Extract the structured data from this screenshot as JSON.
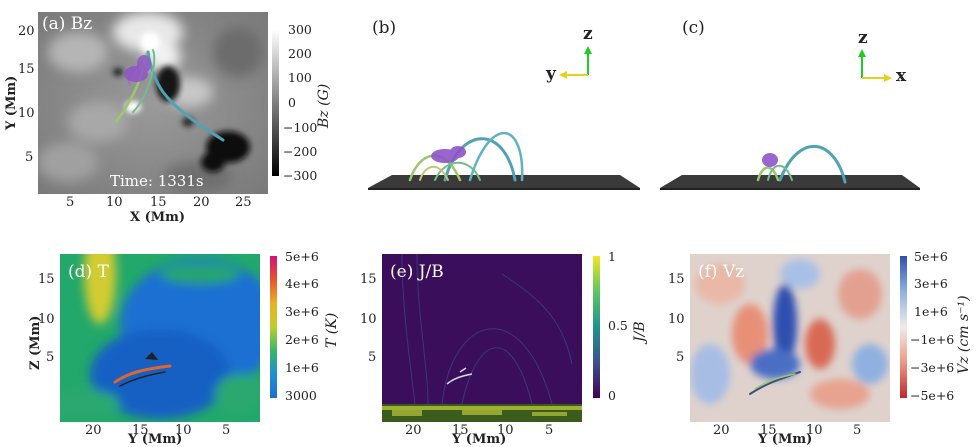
{
  "panel_a": {
    "label": "(a) Bz",
    "time": "Time: 1331s",
    "xlabel": "X (Mm)",
    "ylabel": "Y (Mm)",
    "xticks": [
      "5",
      "10",
      "15",
      "20",
      "25"
    ],
    "yticks": [
      "20",
      "15",
      "10",
      "5"
    ],
    "cbar_ticks": [
      "300",
      "200",
      "100",
      "0",
      "−100",
      "−200",
      "−300"
    ],
    "cbar_label": "Bz (G)"
  },
  "panel_b": {
    "label": "(b)",
    "axis_up": "z",
    "axis_side": "y"
  },
  "panel_c": {
    "label": "(c)",
    "axis_up": "z",
    "axis_side": "x"
  },
  "panel_d": {
    "label": "(d) T",
    "xlabel": "Y (Mm)",
    "ylabel": "Z (Mm)",
    "xticks": [
      "20",
      "15",
      "10",
      "5"
    ],
    "yticks": [
      "15",
      "10",
      "5"
    ],
    "cbar_ticks": [
      "5e+6",
      "4e+6",
      "3e+6",
      "2e+6",
      "1e+6",
      "3000"
    ],
    "cbar_label": "T (K)"
  },
  "panel_e": {
    "label": "(e) J/B",
    "xlabel": "Y (Mm)",
    "xticks": [
      "20",
      "15",
      "10",
      "5"
    ],
    "yticks": [
      "15",
      "10",
      "5"
    ],
    "cbar_ticks": [
      "1",
      "0.5",
      "0"
    ],
    "cbar_label": "J/B"
  },
  "panel_f": {
    "label": "(f) Vz",
    "xlabel": "Y (Mm)",
    "xticks": [
      "20",
      "15",
      "10",
      "5"
    ],
    "yticks": [
      "15",
      "10",
      "5"
    ],
    "cbar_ticks": [
      "5e+6",
      "3e+6",
      "1e+6",
      "−1e+6",
      "−3e+6",
      "−5e+6"
    ],
    "cbar_label": "Vz (cm s⁻¹)"
  }
}
